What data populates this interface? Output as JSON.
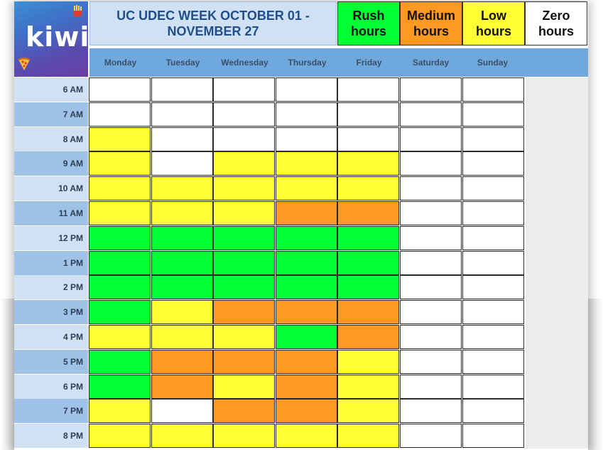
{
  "title": "UC UDEC WEEK  OCTOBER 01 - NOVEMBER 27",
  "brand": {
    "name": "kiwi"
  },
  "legend": [
    {
      "label": "Rush hours",
      "color": "#00ff33"
    },
    {
      "label": "Medium hours",
      "color": "#ff9922"
    },
    {
      "label": "Low hours",
      "color": "#ffff33"
    },
    {
      "label": "Zero hours",
      "color": "#ffffff"
    }
  ],
  "days": [
    "Monday",
    "Tuesday",
    "Wednesday",
    "Thursday",
    "Friday",
    "Saturday",
    "Sunday"
  ],
  "times": [
    "6 AM",
    "7 AM",
    "8 AM",
    "9 AM",
    "10 AM",
    "11 AM",
    "12 PM",
    "1 PM",
    "2 PM",
    "3 PM",
    "4 PM",
    "5 PM",
    "6 PM",
    "7 PM",
    "8 PM"
  ],
  "level_colors": {
    "zero": "#ffffff",
    "low": "#ffff33",
    "medium": "#ff9922",
    "rush": "#00ff33"
  },
  "schedule": [
    [
      "zero",
      "zero",
      "zero",
      "zero",
      "zero",
      "zero",
      "zero"
    ],
    [
      "zero",
      "zero",
      "zero",
      "zero",
      "zero",
      "zero",
      "zero"
    ],
    [
      "low",
      "zero",
      "zero",
      "zero",
      "zero",
      "zero",
      "zero"
    ],
    [
      "low",
      "zero",
      "low",
      "low",
      "low",
      "zero",
      "zero"
    ],
    [
      "low",
      "low",
      "low",
      "low",
      "low",
      "zero",
      "zero"
    ],
    [
      "low",
      "low",
      "low",
      "medium",
      "medium",
      "zero",
      "zero"
    ],
    [
      "rush",
      "rush",
      "rush",
      "rush",
      "rush",
      "zero",
      "zero"
    ],
    [
      "rush",
      "rush",
      "rush",
      "rush",
      "rush",
      "zero",
      "zero"
    ],
    [
      "rush",
      "rush",
      "rush",
      "rush",
      "rush",
      "zero",
      "zero"
    ],
    [
      "rush",
      "low",
      "medium",
      "medium",
      "medium",
      "zero",
      "zero"
    ],
    [
      "low",
      "low",
      "low",
      "rush",
      "medium",
      "zero",
      "zero"
    ],
    [
      "rush",
      "medium",
      "medium",
      "medium",
      "low",
      "zero",
      "zero"
    ],
    [
      "rush",
      "medium",
      "low",
      "medium",
      "low",
      "zero",
      "zero"
    ],
    [
      "low",
      "zero",
      "medium",
      "medium",
      "low",
      "zero",
      "zero"
    ],
    [
      "low",
      "low",
      "low",
      "low",
      "low",
      "zero",
      "zero"
    ]
  ]
}
